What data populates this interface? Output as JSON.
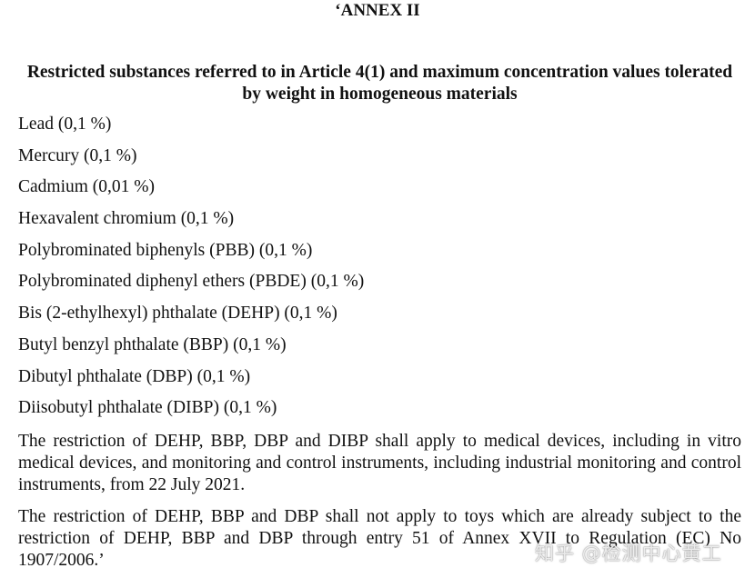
{
  "document": {
    "title": "‘ANNEX II",
    "heading": "Restricted substances referred to in Article 4(1) and maximum concentration values tolerated by weight in homogeneous materials",
    "substances": [
      "Lead (0,1 %)",
      "Mercury (0,1 %)",
      "Cadmium (0,01 %)",
      "Hexavalent chromium (0,1 %)",
      "Polybrominated biphenyls (PBB) (0,1 %)",
      "Polybrominated diphenyl ethers (PBDE) (0,1 %)",
      "Bis (2-ethylhexyl) phthalate (DEHP) (0,1 %)",
      "Butyl benzyl phthalate (BBP) (0,1 %)",
      "Dibutyl phthalate (DBP) (0,1 %)",
      "Diisobutyl phthalate (DIBP) (0,1 %)"
    ],
    "paragraphs": [
      "The restriction of DEHP, BBP, DBP and DIBP shall apply to medical devices, including in vitro medical devices, and monitoring and control instruments, including industrial monitoring and control instruments, from 22 July 2021.",
      "The restriction of DEHP, BBP and DBP shall not apply to toys which are already subject to the restriction of DEHP, BBP and DBP through entry 51 of Annex XVII to Regulation (EC) No 1907/2006.’"
    ]
  },
  "watermark": "知乎 @检测中心黄工"
}
